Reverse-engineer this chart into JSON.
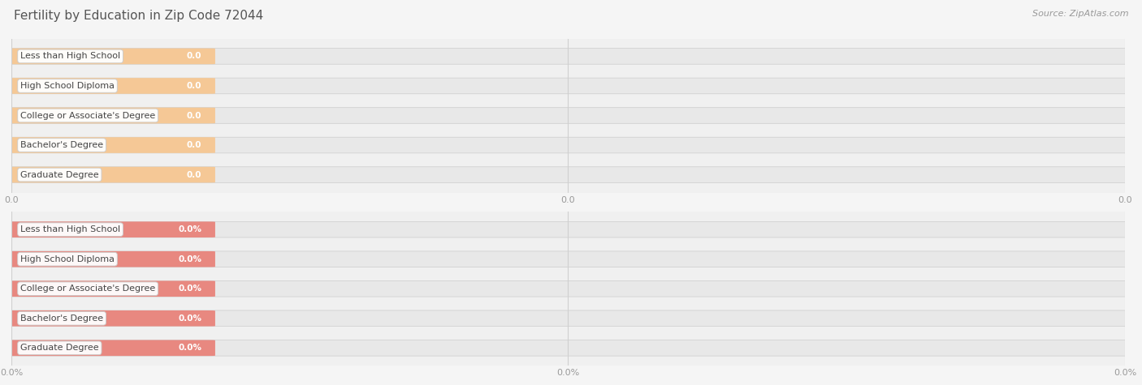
{
  "title": "Fertility by Education in Zip Code 72044",
  "source": "Source: ZipAtlas.com",
  "categories": [
    "Less than High School",
    "High School Diploma",
    "College or Associate's Degree",
    "Bachelor's Degree",
    "Graduate Degree"
  ],
  "values_top": [
    0.0,
    0.0,
    0.0,
    0.0,
    0.0
  ],
  "values_bottom": [
    0.0,
    0.0,
    0.0,
    0.0,
    0.0
  ],
  "labels_top": [
    "0.0",
    "0.0",
    "0.0",
    "0.0",
    "0.0"
  ],
  "labels_bottom": [
    "0.0%",
    "0.0%",
    "0.0%",
    "0.0%",
    "0.0%"
  ],
  "bar_color_top": "#f5c896",
  "bar_bg_color_top": "#e8e8e8",
  "bar_color_bottom": "#e88880",
  "bar_bg_color_bottom": "#e8e8e8",
  "tick_label_color": "#999999",
  "title_color": "#555555",
  "source_color": "#999999",
  "xtick_labels_top": [
    "0.0",
    "0.0",
    "0.0"
  ],
  "xtick_labels_bottom": [
    "0.0%",
    "0.0%",
    "0.0%"
  ],
  "background_color": "#f5f5f5",
  "panel_bg_color": "#f0f0f0",
  "grid_color": "#d0d0d0",
  "title_fontsize": 11,
  "tick_label_fontsize": 8,
  "bar_label_fontsize": 7.5,
  "category_fontsize": 8,
  "source_fontsize": 8,
  "bar_height": 0.52
}
